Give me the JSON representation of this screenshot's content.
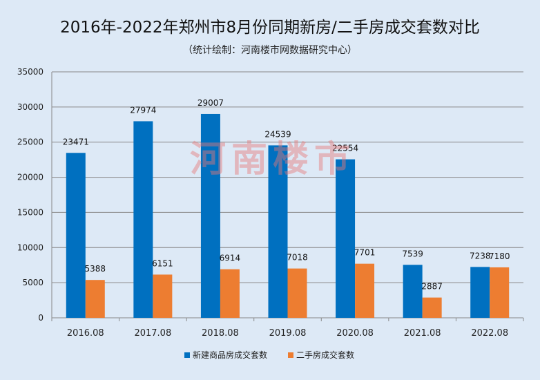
{
  "chart_data": {
    "type": "bar",
    "title": "2016年-2022年郑州市8月份同期新房/二手房成交套数对比",
    "subtitle": "（统计绘制：河南楼市网数据研究中心）",
    "watermark": "河南楼市",
    "categories": [
      "2016.08",
      "2017.08",
      "2018.08",
      "2019.08",
      "2020.08",
      "2021.08",
      "2022.08"
    ],
    "series": [
      {
        "name": "新建商品房成交套数",
        "color": "#0070c0",
        "values": [
          23471,
          27974,
          29007,
          24539,
          22554,
          7539,
          7238
        ]
      },
      {
        "name": "二手房成交套数",
        "color": "#ed7d31",
        "values": [
          5388,
          6151,
          6914,
          7018,
          7701,
          2887,
          7180
        ]
      }
    ],
    "ylim": [
      0,
      35000
    ],
    "yticks": [
      0,
      5000,
      10000,
      15000,
      20000,
      25000,
      30000,
      35000
    ],
    "grid": true,
    "legend": "bottom",
    "xlabel": "",
    "ylabel": ""
  }
}
